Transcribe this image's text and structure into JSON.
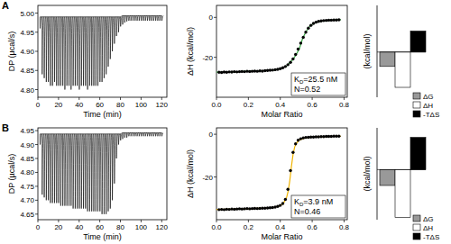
{
  "panel_labels": [
    "A",
    "B"
  ],
  "chart_data": [
    {
      "type": "line",
      "x_label": "Time (min)",
      "y_label": "DP (µcal/s)",
      "color": "#000000",
      "xlim": [
        0,
        125
      ],
      "xticks": [
        0,
        20,
        40,
        60,
        80,
        100,
        120
      ],
      "ylim": [
        4.78,
        5.02
      ],
      "yticks": [
        {
          "value": 4.8,
          "label": "4.80"
        },
        4.85,
        {
          "value": 4.9,
          "label": "4.90"
        },
        4.95,
        {
          "value": 5.0,
          "label": "5.00"
        }
      ],
      "x": [
        2,
        4,
        6,
        8,
        10,
        12,
        14,
        16,
        18,
        20,
        22,
        24,
        26,
        28,
        30,
        32,
        34,
        36,
        38,
        40,
        42,
        44,
        46,
        48,
        50,
        52,
        54,
        56,
        58,
        60,
        62,
        64,
        66,
        68,
        70,
        72,
        74,
        76,
        78,
        80,
        82,
        84,
        86,
        88,
        90,
        92,
        94,
        96,
        98,
        100,
        102,
        104,
        106,
        108,
        110,
        112,
        114,
        116,
        118,
        120
      ],
      "values": [
        4.96,
        4.84,
        4.83,
        4.82,
        4.82,
        4.81,
        4.81,
        4.82,
        4.81,
        4.81,
        4.81,
        4.81,
        4.8,
        4.81,
        4.81,
        4.8,
        4.81,
        4.81,
        4.81,
        4.8,
        4.81,
        4.81,
        4.81,
        4.8,
        4.81,
        4.81,
        4.81,
        4.81,
        4.81,
        4.82,
        4.82,
        4.83,
        4.84,
        4.86,
        4.88,
        4.9,
        4.92,
        4.94,
        4.95,
        4.965,
        4.97,
        4.975,
        4.978,
        4.98,
        4.98,
        4.98,
        4.98,
        4.98,
        4.98,
        4.98,
        4.98,
        4.98,
        4.98,
        4.98,
        4.98,
        4.98,
        4.98,
        4.98,
        4.98,
        4.98
      ],
      "baseline": [
        4.99,
        4.99,
        4.99,
        4.99,
        4.99,
        4.99,
        4.99,
        4.99,
        4.99,
        4.99,
        4.99,
        4.99,
        4.99,
        4.99,
        4.99,
        4.99,
        4.99,
        4.99,
        4.99,
        4.99,
        4.99,
        4.99,
        4.99,
        4.99,
        4.99,
        4.99,
        4.99,
        4.99,
        4.99,
        4.99,
        4.99,
        4.99,
        4.99,
        4.99,
        4.99,
        4.99,
        4.99,
        4.99,
        4.99,
        4.99,
        4.993,
        4.993,
        4.993,
        4.993,
        4.993,
        4.993,
        4.993,
        4.993,
        4.993,
        4.993,
        4.993,
        4.993,
        4.993,
        4.993,
        4.993,
        4.993,
        4.993,
        4.993,
        4.993,
        4.993
      ]
    },
    {
      "type": "scatter",
      "x_label": "Molar Ratio",
      "y_label": "ΔH (kcal/mol)",
      "xlim": [
        0,
        0.82
      ],
      "xticks": [
        {
          "value": 0,
          "label": "0.0"
        },
        0.2,
        0.4,
        0.6,
        0.8
      ],
      "ylim": [
        -40,
        6
      ],
      "yticks": [
        -20,
        0
      ],
      "series": [
        {
          "color": "#000000",
          "marker": "circle",
          "x": [
            0.016,
            0.032,
            0.048,
            0.064,
            0.08,
            0.096,
            0.112,
            0.128,
            0.144,
            0.16,
            0.176,
            0.192,
            0.208,
            0.224,
            0.24,
            0.256,
            0.272,
            0.288,
            0.304,
            0.32,
            0.336,
            0.352,
            0.368,
            0.384,
            0.4,
            0.416,
            0.432,
            0.448,
            0.464,
            0.48,
            0.496,
            0.512,
            0.528,
            0.544,
            0.56,
            0.576,
            0.592,
            0.608,
            0.624,
            0.64,
            0.656,
            0.672,
            0.688,
            0.704,
            0.72,
            0.736,
            0.752,
            0.768
          ],
          "values": [
            -27.5,
            -27.6,
            -27.4,
            -27.5,
            -27.3,
            -27.4,
            -27.2,
            -27.3,
            -27.2,
            -27.1,
            -27.2,
            -27.0,
            -27.1,
            -27.0,
            -26.9,
            -27.0,
            -26.8,
            -26.9,
            -26.7,
            -26.6,
            -26.5,
            -26.4,
            -26.2,
            -26.0,
            -25.7,
            -25.2,
            -24.6,
            -23.7,
            -22.5,
            -20.8,
            -18.6,
            -15.9,
            -12.9,
            -10.0,
            -7.4,
            -5.4,
            -4.0,
            -3.0,
            -2.4,
            -2.0,
            -1.8,
            -1.6,
            -1.5,
            -1.4,
            -1.4,
            -1.3,
            -1.3,
            -1.2
          ]
        },
        {
          "type": "line",
          "color": "#3aa845",
          "x": [
            0,
            0.1,
            0.2,
            0.3,
            0.36,
            0.4,
            0.44,
            0.48,
            0.5,
            0.52,
            0.54,
            0.56,
            0.58,
            0.6,
            0.64,
            0.7,
            0.78
          ],
          "values": [
            -27.4,
            -27.3,
            -27.0,
            -26.7,
            -26.3,
            -25.8,
            -24.3,
            -21.0,
            -18.6,
            -15.6,
            -10.6,
            -7.3,
            -5.0,
            -3.5,
            -2.1,
            -1.5,
            -1.2
          ]
        }
      ],
      "annotations": [
        {
          "text": "K",
          "subscript": "D",
          "rest": "=25.5 nM"
        },
        {
          "text": "N=0.52"
        }
      ]
    },
    {
      "type": "bar",
      "y_label": "(kcal/mol)",
      "tick_labels": false,
      "legend": "right",
      "categories": [
        "ΔG",
        "ΔH",
        "-TΔS"
      ],
      "values": [
        -10.2,
        -25,
        14.8
      ],
      "colors": [
        "#999999",
        "#ffffff",
        "#000000"
      ],
      "ylim": [
        -32,
        33
      ]
    },
    {
      "type": "line",
      "x_label": "Time (min)",
      "y_label": "DP (µcal/s)",
      "color": "#000000",
      "xlim": [
        0,
        125
      ],
      "xticks": [
        0,
        20,
        40,
        60,
        80,
        100,
        120
      ],
      "ylim": [
        4.63,
        4.96
      ],
      "yticks": [
        4.65,
        {
          "value": 4.7,
          "label": "4.70"
        },
        4.75,
        {
          "value": 4.8,
          "label": "4.80"
        },
        4.85,
        {
          "value": 4.9,
          "label": "4.90"
        },
        4.95
      ],
      "x": [
        2,
        4,
        6,
        8,
        10,
        12,
        14,
        16,
        18,
        20,
        22,
        24,
        26,
        28,
        30,
        32,
        34,
        36,
        38,
        40,
        42,
        44,
        46,
        48,
        50,
        52,
        54,
        56,
        58,
        60,
        62,
        64,
        66,
        68,
        70,
        72,
        74,
        76,
        78,
        80,
        82,
        84,
        86,
        88,
        90,
        92,
        94,
        96,
        98,
        100,
        102,
        104,
        106,
        108,
        110,
        112,
        114,
        116,
        118,
        120
      ],
      "values": [
        4.9,
        4.72,
        4.71,
        4.7,
        4.7,
        4.69,
        4.69,
        4.69,
        4.69,
        4.69,
        4.68,
        4.68,
        4.68,
        4.68,
        4.68,
        4.68,
        4.67,
        4.67,
        4.67,
        4.67,
        4.67,
        4.67,
        4.67,
        4.66,
        4.66,
        4.66,
        4.66,
        4.66,
        4.66,
        4.66,
        4.65,
        4.65,
        4.65,
        4.66,
        4.67,
        4.7,
        4.76,
        4.85,
        4.9,
        4.915,
        4.92,
        4.925,
        4.925,
        4.93,
        4.93,
        4.93,
        4.93,
        4.93,
        4.93,
        4.93,
        4.93,
        4.93,
        4.93,
        4.93,
        4.93,
        4.93,
        4.93,
        4.93,
        4.93,
        4.93
      ],
      "baseline": [
        4.938,
        4.938,
        4.938,
        4.938,
        4.938,
        4.938,
        4.938,
        4.938,
        4.938,
        4.938,
        4.938,
        4.938,
        4.938,
        4.938,
        4.938,
        4.938,
        4.938,
        4.938,
        4.938,
        4.938,
        4.938,
        4.938,
        4.938,
        4.938,
        4.938,
        4.938,
        4.938,
        4.938,
        4.938,
        4.938,
        4.938,
        4.938,
        4.938,
        4.938,
        4.938,
        4.938,
        4.938,
        4.938,
        4.938,
        4.938,
        4.942,
        4.942,
        4.942,
        4.942,
        4.942,
        4.942,
        4.942,
        4.942,
        4.942,
        4.942,
        4.942,
        4.942,
        4.942,
        4.942,
        4.942,
        4.942,
        4.942,
        4.942,
        4.942,
        4.942
      ]
    },
    {
      "type": "scatter",
      "x_label": "Molar Ratio",
      "y_label": "ΔH (kcal/mol)",
      "xlim": [
        0,
        0.82
      ],
      "xticks": [
        {
          "value": 0,
          "label": "0.0"
        },
        0.2,
        0.4,
        0.6,
        0.8
      ],
      "ylim": [
        -40,
        3
      ],
      "yticks": [
        -20,
        0
      ],
      "series": [
        {
          "color": "#000000",
          "marker": "circle",
          "x": [
            0.016,
            0.032,
            0.048,
            0.064,
            0.08,
            0.096,
            0.112,
            0.128,
            0.144,
            0.16,
            0.176,
            0.192,
            0.208,
            0.224,
            0.24,
            0.256,
            0.272,
            0.288,
            0.304,
            0.32,
            0.336,
            0.352,
            0.368,
            0.384,
            0.4,
            0.416,
            0.432,
            0.448,
            0.464,
            0.48,
            0.496,
            0.512,
            0.528,
            0.544,
            0.56,
            0.576,
            0.592,
            0.608,
            0.624,
            0.64,
            0.656,
            0.672,
            0.688,
            0.704,
            0.72,
            0.736,
            0.752,
            0.768
          ],
          "values": [
            -35.3,
            -35.2,
            -35.3,
            -35.1,
            -35.2,
            -35.0,
            -35.1,
            -35.0,
            -34.9,
            -35.0,
            -34.9,
            -34.8,
            -34.9,
            -34.8,
            -34.7,
            -34.8,
            -34.7,
            -34.6,
            -34.6,
            -34.5,
            -34.4,
            -34.3,
            -34.1,
            -33.8,
            -33.3,
            -32.4,
            -30.5,
            -25.8,
            -17.0,
            -8.5,
            -4.5,
            -2.8,
            -2.1,
            -1.7,
            -1.5,
            -1.4,
            -1.3,
            -1.3,
            -1.2,
            -1.2,
            -1.1,
            -1.1,
            -1.0,
            -1.0,
            -1.0,
            -0.9,
            -0.9,
            -0.9
          ]
        },
        {
          "type": "line",
          "color": "#f0b400",
          "x": [
            0,
            0.1,
            0.2,
            0.3,
            0.36,
            0.4,
            0.42,
            0.44,
            0.45,
            0.46,
            0.47,
            0.48,
            0.49,
            0.5,
            0.52,
            0.56,
            0.64,
            0.78
          ],
          "values": [
            -35.2,
            -35.1,
            -34.9,
            -34.6,
            -34.2,
            -33.4,
            -32.3,
            -29.5,
            -26.5,
            -21.5,
            -15.0,
            -9.5,
            -6.0,
            -4.3,
            -2.7,
            -1.6,
            -1.2,
            -0.9
          ]
        }
      ],
      "annotations": [
        {
          "text": "K",
          "subscript": "D",
          "rest": "=3.9 nM"
        },
        {
          "text": "N=0.46"
        }
      ]
    },
    {
      "type": "bar",
      "y_label": "(kcal/mol)",
      "tick_labels": false,
      "legend": "right",
      "categories": [
        "ΔG",
        "ΔH",
        "-TΔS"
      ],
      "values": [
        -11.4,
        -34.5,
        23.1
      ],
      "colors": [
        "#999999",
        "#ffffff",
        "#000000"
      ],
      "ylim": [
        -36,
        30
      ]
    }
  ]
}
